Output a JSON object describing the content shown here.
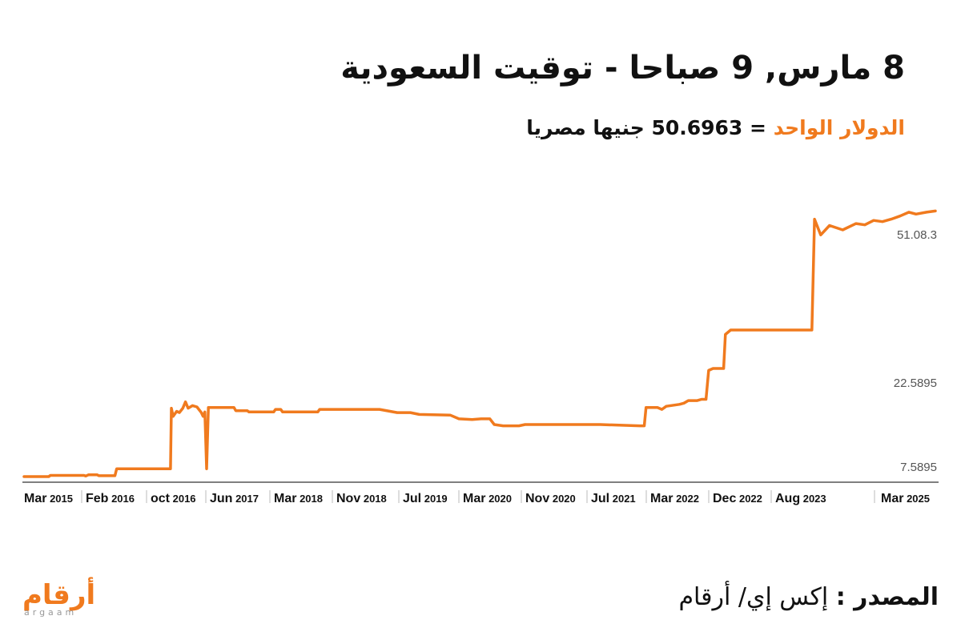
{
  "header": {
    "title": "8 مارس, 9 صباحا - توقيت السعودية",
    "subtitle_highlight": "الدولار الواحد",
    "subtitle_rest": "= 50.6963  جنيها مصريا"
  },
  "footer": {
    "source_label": "المصدر :",
    "source_value": "إكس إي/ أرقام"
  },
  "logo": {
    "arabic": "أرقام",
    "latin": "argaam"
  },
  "colors": {
    "line": "#F07A1E",
    "axis": "#555555",
    "text": "#111111"
  },
  "chart_data": {
    "type": "line",
    "title": "8 مارس, 9 صباحا - توقيت السعودية",
    "x_ticks": [
      {
        "month": "Mar",
        "year": "2015"
      },
      {
        "month": "Feb",
        "year": "2016"
      },
      {
        "month": "oct",
        "year": "2016"
      },
      {
        "month": "Jun",
        "year": "2017"
      },
      {
        "month": "Mar",
        "year": "2018"
      },
      {
        "month": "Nov",
        "year": "2018"
      },
      {
        "month": "Jul",
        "year": "2019"
      },
      {
        "month": "Mar",
        "year": "2020"
      },
      {
        "month": "Nov",
        "year": "2020"
      },
      {
        "month": "Jul",
        "year": "2021"
      },
      {
        "month": "Mar",
        "year": "2022"
      },
      {
        "month": "Dec",
        "year": "2022"
      },
      {
        "month": "Aug",
        "year": "2023"
      },
      {
        "month": "Mar",
        "year": "2025"
      }
    ],
    "y_ticks": [
      {
        "label": "7.5895",
        "value": 7.5895
      },
      {
        "label": "22.5895",
        "value": 22.5895
      },
      {
        "label": "51.08.3",
        "value": 51.083
      }
    ],
    "ylim": [
      7.0,
      51.5
    ],
    "grid": false,
    "series": [
      {
        "color": "#F07A1E",
        "points": [
          [
            2015.17,
            7.63
          ],
          [
            2015.45,
            7.63
          ],
          [
            2015.47,
            7.83
          ],
          [
            2015.7,
            7.83
          ],
          [
            2015.85,
            7.83
          ],
          [
            2015.87,
            7.73
          ],
          [
            2015.9,
            7.92
          ],
          [
            2016.0,
            7.92
          ],
          [
            2016.02,
            7.78
          ],
          [
            2016.2,
            7.78
          ],
          [
            2016.22,
            8.88
          ],
          [
            2016.83,
            8.88
          ],
          [
            2016.84,
            18.5
          ],
          [
            2016.86,
            17.2
          ],
          [
            2016.9,
            18.0
          ],
          [
            2016.93,
            17.8
          ],
          [
            2016.97,
            18.5
          ],
          [
            2017.0,
            19.5
          ],
          [
            2017.03,
            18.5
          ],
          [
            2017.08,
            18.9
          ],
          [
            2017.13,
            18.7
          ],
          [
            2017.18,
            17.8
          ],
          [
            2017.2,
            17.2
          ],
          [
            2017.22,
            17.9
          ],
          [
            2017.24,
            8.88
          ],
          [
            2017.26,
            18.6
          ],
          [
            2017.55,
            18.6
          ],
          [
            2017.57,
            18.1
          ],
          [
            2017.7,
            18.1
          ],
          [
            2017.72,
            17.9
          ],
          [
            2018.0,
            17.9
          ],
          [
            2018.02,
            18.3
          ],
          [
            2018.08,
            18.3
          ],
          [
            2018.1,
            17.9
          ],
          [
            2018.5,
            17.9
          ],
          [
            2018.52,
            18.3
          ],
          [
            2019.2,
            18.3
          ],
          [
            2019.4,
            17.8
          ],
          [
            2019.55,
            17.8
          ],
          [
            2019.65,
            17.5
          ],
          [
            2020.0,
            17.4
          ],
          [
            2020.1,
            16.8
          ],
          [
            2020.25,
            16.7
          ],
          [
            2020.35,
            16.8
          ],
          [
            2020.45,
            16.8
          ],
          [
            2020.5,
            15.9
          ],
          [
            2020.6,
            15.7
          ],
          [
            2020.7,
            15.7
          ],
          [
            2020.78,
            15.7
          ],
          [
            2020.85,
            15.9
          ],
          [
            2021.7,
            15.9
          ],
          [
            2022.15,
            15.7
          ],
          [
            2022.2,
            15.7
          ],
          [
            2022.22,
            18.6
          ],
          [
            2022.35,
            18.6
          ],
          [
            2022.4,
            18.3
          ],
          [
            2022.45,
            18.8
          ],
          [
            2022.6,
            19.1
          ],
          [
            2022.65,
            19.3
          ],
          [
            2022.7,
            19.7
          ],
          [
            2022.8,
            19.7
          ],
          [
            2022.85,
            19.9
          ],
          [
            2022.9,
            19.9
          ],
          [
            2022.93,
            24.5
          ],
          [
            2022.98,
            24.8
          ],
          [
            2023.1,
            24.8
          ],
          [
            2023.12,
            30.2
          ],
          [
            2023.18,
            30.9
          ],
          [
            2023.3,
            30.9
          ],
          [
            2024.1,
            30.9
          ],
          [
            2024.13,
            48.5
          ],
          [
            2024.2,
            46.0
          ],
          [
            2024.3,
            47.5
          ],
          [
            2024.45,
            46.8
          ],
          [
            2024.6,
            47.8
          ],
          [
            2024.7,
            47.6
          ],
          [
            2024.8,
            48.3
          ],
          [
            2024.9,
            48.1
          ],
          [
            2025.0,
            48.5
          ],
          [
            2025.1,
            49.0
          ],
          [
            2025.2,
            49.6
          ],
          [
            2025.28,
            49.3
          ],
          [
            2025.4,
            49.6
          ],
          [
            2025.5,
            49.8
          ]
        ]
      }
    ]
  }
}
